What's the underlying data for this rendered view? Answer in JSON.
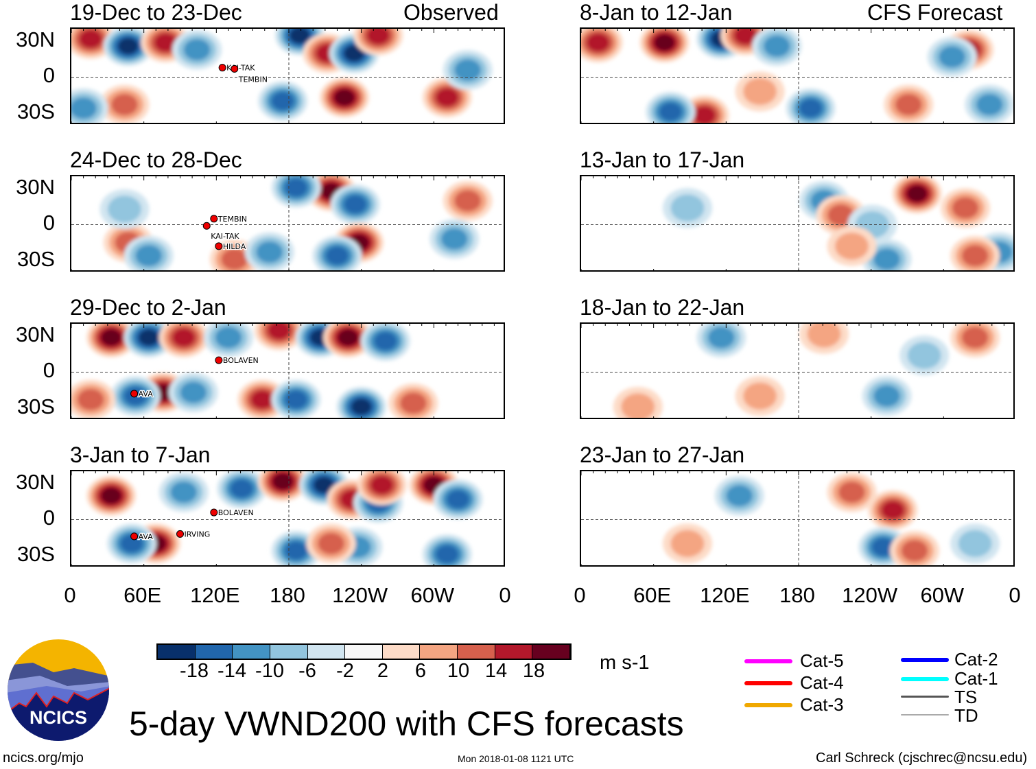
{
  "header": {
    "left_label": "Observed",
    "right_label": "CFS Forecast"
  },
  "lat_labels": [
    "30N",
    "0",
    "30S"
  ],
  "lon_labels": [
    "0",
    "60E",
    "120E",
    "180",
    "120W",
    "60W",
    "0"
  ],
  "colorbar": {
    "labels": [
      "-18",
      "-14",
      "-10",
      "-6",
      "-2",
      "2",
      "6",
      "10",
      "14",
      "18"
    ],
    "colors": [
      "#08306b",
      "#2166ac",
      "#4393c3",
      "#92c5de",
      "#d1e5f0",
      "#f7f7f7",
      "#fddbc7",
      "#f4a582",
      "#d6604d",
      "#b2182b",
      "#67001f"
    ],
    "units": "m s-1"
  },
  "title": "5-day VWND200 with CFS forecasts",
  "logo_text": "NCICS",
  "footer": {
    "url": "ncics.org/mjo",
    "timestamp": "Mon 2018-01-08 1121 UTC",
    "author": "Carl Schreck (cjschrec@ncsu.edu)"
  },
  "legend": [
    {
      "label": "Cat-5",
      "color": "#ff00ff"
    },
    {
      "label": "Cat-4",
      "color": "#ff0000"
    },
    {
      "label": "Cat-3",
      "color": "#f0a800"
    },
    {
      "label": "Cat-2",
      "color": "#0000ff"
    },
    {
      "label": "Cat-1",
      "color": "#00ffff"
    },
    {
      "label": "TS",
      "color": "#555555"
    },
    {
      "label": "TD",
      "color": "#aaaaaa"
    }
  ],
  "chart_data": {
    "type": "heatmap",
    "variable": "200 hPa meridional wind anomaly",
    "units": "m s-1",
    "lon_range": [
      0,
      360
    ],
    "lat_range": [
      -40,
      40
    ],
    "panels": [
      {
        "title": "19-Dec to 23-Dec",
        "source": "Observed",
        "storms": [
          {
            "name": "KAI-TAK",
            "lon": 125,
            "lat": 8
          },
          {
            "name": "TEMBIN",
            "lon": 135,
            "lat": 7
          }
        ],
        "features": [
          [
            16,
            32,
            14
          ],
          [
            47,
            26,
            -18
          ],
          [
            78,
            29,
            14
          ],
          [
            104,
            23,
            -10
          ],
          [
            189,
            35,
            -18
          ],
          [
            212,
            20,
            14
          ],
          [
            234,
            20,
            -18
          ],
          [
            254,
            35,
            14
          ],
          [
            226,
            -17,
            18
          ],
          [
            175,
            -20,
            -14
          ],
          [
            44,
            -23,
            10
          ],
          [
            311,
            -17,
            14
          ],
          [
            328,
            6,
            -10
          ],
          [
            10,
            -26,
            -10
          ]
        ]
      },
      {
        "title": "24-Dec to 28-Dec",
        "source": "Observed",
        "storms": [
          {
            "name": "TEMBIN",
            "lon": 118,
            "lat": 5
          },
          {
            "name": "KAI-TAK",
            "lon": 112,
            "lat": -1
          },
          {
            "name": "HILDA",
            "lon": 122,
            "lat": -18
          }
        ],
        "features": [
          [
            215,
            28,
            18
          ],
          [
            186,
            31,
            -14
          ],
          [
            235,
            17,
            -14
          ],
          [
            238,
            -15,
            18
          ],
          [
            220,
            -26,
            -14
          ],
          [
            135,
            -29,
            10
          ],
          [
            164,
            -23,
            -10
          ],
          [
            328,
            20,
            10
          ],
          [
            317,
            -12,
            -10
          ],
          [
            47,
            -15,
            10
          ],
          [
            64,
            -26,
            -10
          ],
          [
            44,
            13,
            -6
          ]
        ]
      },
      {
        "title": "29-Dec to 2-Jan",
        "source": "Observed",
        "storms": [
          {
            "name": "BOLAVEN",
            "lon": 122,
            "lat": 10
          },
          {
            "name": "AVA",
            "lon": 52,
            "lat": -18
          }
        ],
        "features": [
          [
            33,
            29,
            18
          ],
          [
            64,
            29,
            -18
          ],
          [
            93,
            29,
            14
          ],
          [
            130,
            29,
            -10
          ],
          [
            172,
            35,
            14
          ],
          [
            206,
            29,
            -18
          ],
          [
            229,
            29,
            18
          ],
          [
            260,
            26,
            -14
          ],
          [
            76,
            -17,
            18
          ],
          [
            53,
            -20,
            -14
          ],
          [
            158,
            -23,
            14
          ],
          [
            186,
            -23,
            -14
          ],
          [
            101,
            -17,
            -10
          ],
          [
            16,
            -23,
            10
          ],
          [
            240,
            -29,
            -18
          ],
          [
            283,
            -26,
            10
          ]
        ]
      },
      {
        "title": "3-Jan to 7-Jan",
        "source": "Observed",
        "storms": [
          {
            "name": "BOLAVEN",
            "lon": 118,
            "lat": 6
          },
          {
            "name": "AVA",
            "lon": 52,
            "lat": -14
          },
          {
            "name": "IRVING",
            "lon": 90,
            "lat": -12
          }
        ],
        "features": [
          [
            33,
            20,
            18
          ],
          [
            93,
            23,
            -10
          ],
          [
            141,
            26,
            -14
          ],
          [
            175,
            32,
            18
          ],
          [
            209,
            29,
            -18
          ],
          [
            232,
            17,
            14
          ],
          [
            254,
            14,
            -14
          ],
          [
            300,
            29,
            18
          ],
          [
            320,
            17,
            -14
          ],
          [
            257,
            29,
            14
          ],
          [
            70,
            -20,
            18
          ],
          [
            50,
            -20,
            -14
          ],
          [
            186,
            -26,
            -14
          ],
          [
            237,
            -23,
            -10
          ],
          [
            215,
            -20,
            10
          ],
          [
            311,
            -29,
            -14
          ]
        ]
      },
      {
        "title": "8-Jan to 12-Jan",
        "source": "CFS Forecast",
        "storms": [
          {
            "name": "",
            "lon": 0,
            "lat": 0
          }
        ],
        "features": [
          [
            14,
            29,
            14
          ],
          [
            69,
            29,
            18
          ],
          [
            116,
            32,
            -18
          ],
          [
            136,
            35,
            14
          ],
          [
            162,
            26,
            -10
          ],
          [
            321,
            23,
            14
          ],
          [
            307,
            17,
            -10
          ],
          [
            102,
            -32,
            14
          ],
          [
            74,
            -29,
            -14
          ],
          [
            190,
            -26,
            -14
          ],
          [
            271,
            -23,
            10
          ],
          [
            338,
            -23,
            -10
          ],
          [
            148,
            -12,
            6
          ]
        ]
      },
      {
        "title": "13-Jan to 17-Jan",
        "source": "CFS Forecast",
        "features": [
          [
            278,
            26,
            18
          ],
          [
            201,
            20,
            -10
          ],
          [
            215,
            8,
            10
          ],
          [
            241,
            0,
            -6
          ],
          [
            318,
            14,
            10
          ],
          [
            346,
            -23,
            -10
          ],
          [
            326,
            -26,
            10
          ],
          [
            253,
            -29,
            -10
          ],
          [
            224,
            -18,
            6
          ],
          [
            88,
            14,
            -6
          ]
        ]
      },
      {
        "title": "18-Jan to 22-Jan",
        "source": "CFS Forecast",
        "features": [
          [
            116,
            29,
            -10
          ],
          [
            201,
            32,
            6
          ],
          [
            253,
            -20,
            -10
          ],
          [
            148,
            -20,
            6
          ],
          [
            326,
            29,
            10
          ],
          [
            284,
            14,
            -6
          ],
          [
            47,
            -29,
            6
          ]
        ]
      },
      {
        "title": "23-Jan to 27-Jan",
        "source": "CFS Forecast",
        "features": [
          [
            258,
            8,
            14
          ],
          [
            131,
            20,
            -10
          ],
          [
            224,
            23,
            10
          ],
          [
            250,
            -23,
            -14
          ],
          [
            276,
            -26,
            10
          ],
          [
            326,
            -20,
            -6
          ],
          [
            88,
            -20,
            6
          ]
        ]
      }
    ]
  }
}
